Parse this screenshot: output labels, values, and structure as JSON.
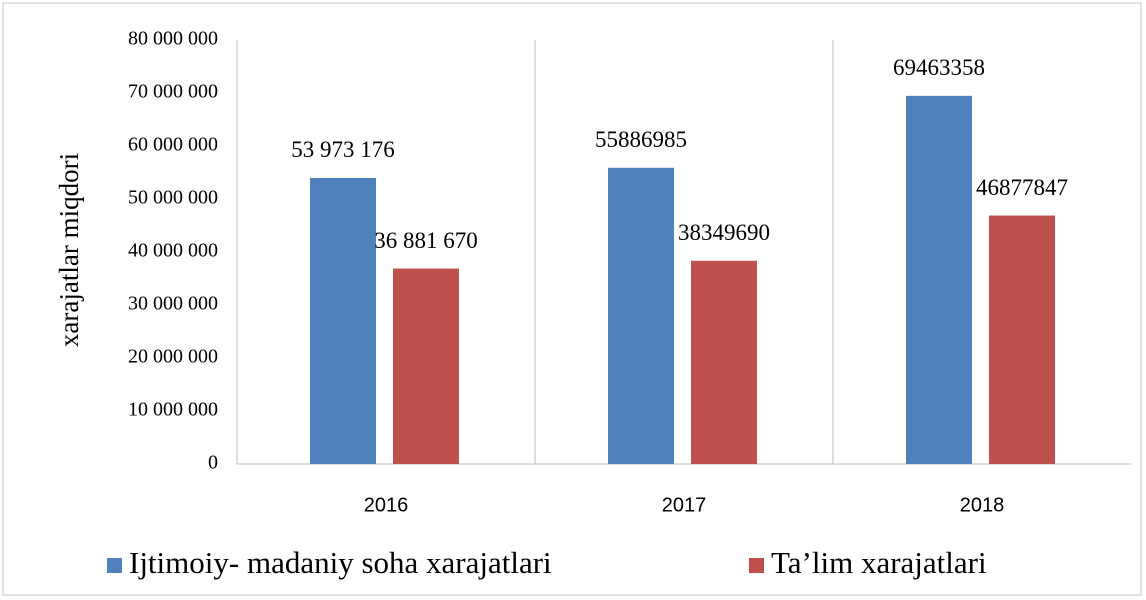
{
  "chart_data": {
    "type": "bar",
    "y_label": "xarajatlar  miqdori",
    "categories": [
      "2016",
      "2017",
      "2018"
    ],
    "series": [
      {
        "name": "Ijtimoiy- madaniy soha xarajatlari",
        "color": "#4f81bd",
        "values": [
          53973176,
          55886985,
          69463358
        ],
        "value_labels": [
          "53 973 176",
          "55886985",
          "69463358"
        ]
      },
      {
        "name": "Ta’lim xarajatlari",
        "color": "#c0504d",
        "values": [
          36881670,
          38349690,
          46877847
        ],
        "value_labels": [
          "36 881 670",
          "38349690",
          "46877847"
        ]
      }
    ],
    "ylim": [
      0,
      80000000
    ],
    "yticks": [
      0,
      {
        "value": 10000000,
        "label": "10 000 000"
      },
      {
        "value": 20000000,
        "label": "20 000 000"
      },
      {
        "value": 30000000,
        "label": "30 000 000"
      },
      {
        "value": 40000000,
        "label": "40 000 000"
      },
      {
        "value": 50000000,
        "label": "50 000 000"
      },
      {
        "value": 60000000,
        "label": "60 000 000"
      },
      {
        "value": 70000000,
        "label": "70 000 000"
      },
      {
        "value": 80000000,
        "label": "80 000 000"
      }
    ],
    "grid": false,
    "legend": "bottom"
  }
}
